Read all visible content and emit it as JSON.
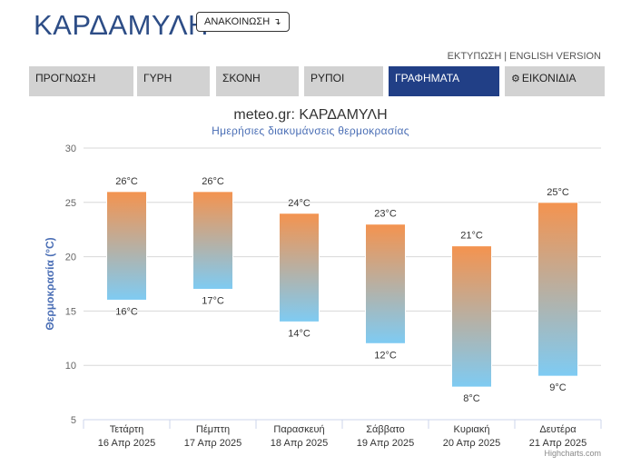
{
  "header": {
    "site_title": "ΚΑΡΔΑΜΥΛΗ",
    "announce_label": "ΑΝΑΚΟΙΝΩΣΗ",
    "announce_arrow": "↴",
    "print_link": "ΕΚΤΥΠΩΣΗ",
    "link_separator": "|",
    "english_link": "ENGLISH VERSION"
  },
  "nav": {
    "tabs": [
      {
        "label": "ΠΡΟΓΝΩΣΗ",
        "active": false
      },
      {
        "label": "ΓΥΡΗ",
        "active": false
      },
      {
        "label": "ΣΚΟΝΗ",
        "active": false
      },
      {
        "label": "ΡΥΠΟΙ",
        "active": false
      },
      {
        "label": "ΓΡΑΦΗΜΑΤΑ",
        "active": true
      },
      {
        "label": "ΕΙΚΟΝΙΔΙΑ",
        "active": false,
        "icon": "gear-icon"
      }
    ]
  },
  "chart_data": {
    "type": "bar",
    "title": "meteo.gr: ΚΑΡΔΑΜΥΛΗ",
    "subtitle": "Ημερήσιες διακυμάνσεις θερμοκρασίας",
    "ylabel": "Θερμοκρασία (°C)",
    "xlabel": "",
    "ylim": [
      5,
      30
    ],
    "yticks": [
      5,
      10,
      15,
      20,
      25,
      30
    ],
    "grid": true,
    "categories": [
      {
        "day": "Τετάρτη",
        "date": "16 Απρ 2025"
      },
      {
        "day": "Πέμπτη",
        "date": "17 Απρ 2025"
      },
      {
        "day": "Παρασκευή",
        "date": "18 Απρ 2025"
      },
      {
        "day": "Σάββατο",
        "date": "19 Απρ 2025"
      },
      {
        "day": "Κυριακή",
        "date": "20 Απρ 2025"
      },
      {
        "day": "Δευτέρα",
        "date": "21 Απρ 2025"
      }
    ],
    "low": [
      16,
      17,
      14,
      12,
      8,
      9
    ],
    "high": [
      26,
      26,
      24,
      23,
      21,
      25
    ],
    "unit": "°C",
    "colors": {
      "high": "#f4934f",
      "low": "#7ecbf3",
      "grid": "#d8d8d8",
      "axis": "#ccd6eb"
    }
  },
  "credits": "Highcharts.com"
}
